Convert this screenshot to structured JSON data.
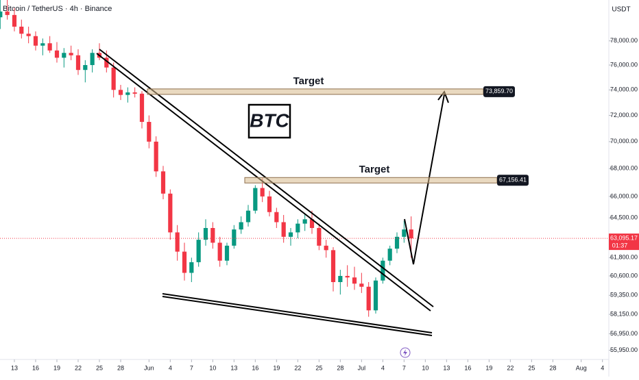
{
  "chart_data": {
    "type": "candlestick",
    "title": "Bitcoin / TetherUS · 4h · Binance",
    "currency": "USDT",
    "annotation": "BTC",
    "targets": [
      {
        "text": "Target",
        "level": {
          "value": 73859.7,
          "label": "73,859.70"
        }
      },
      {
        "text": "Target",
        "level": {
          "value": 67156.41,
          "label": "67,156.41"
        }
      }
    ],
    "last_price": {
      "value": 63095.17,
      "label": "63,095.17"
    },
    "countdown": "01:37",
    "log_scale": true,
    "up_color": "#089981",
    "down_color": "#f23645",
    "xlim": [
      -2.03,
      83.9
    ],
    "ylim": [
      55400,
      81500
    ],
    "yticks": [
      {
        "value": 78000,
        "label": "78,000.00"
      },
      {
        "value": 76000,
        "label": "76,000.00"
      },
      {
        "value": 74000,
        "label": "74,000.00"
      },
      {
        "value": 72000,
        "label": "72,000.00"
      },
      {
        "value": 70000,
        "label": "70,000.00"
      },
      {
        "value": 68000,
        "label": "68,000.00"
      },
      {
        "value": 66000,
        "label": "66,000.00"
      },
      {
        "value": 64500,
        "label": "64,500.00"
      },
      {
        "value": 61800,
        "label": "61,800.00"
      },
      {
        "value": 60600,
        "label": "60,600.00"
      },
      {
        "value": 59350,
        "label": "59,350.00"
      },
      {
        "value": 58150,
        "label": "58,150.00"
      },
      {
        "value": 56950,
        "label": "56,950.00"
      },
      {
        "value": 55950,
        "label": "55,950.00"
      }
    ],
    "xticks": [
      {
        "value": 0,
        "label": "13"
      },
      {
        "value": 3,
        "label": "16"
      },
      {
        "value": 6,
        "label": "19"
      },
      {
        "value": 9,
        "label": "22"
      },
      {
        "value": 12,
        "label": "25"
      },
      {
        "value": 15,
        "label": "28"
      },
      {
        "value": 19,
        "label": "Jun"
      },
      {
        "value": 22,
        "label": "4"
      },
      {
        "value": 25,
        "label": "7"
      },
      {
        "value": 28,
        "label": "10"
      },
      {
        "value": 31,
        "label": "13"
      },
      {
        "value": 34,
        "label": "16"
      },
      {
        "value": 37,
        "label": "19"
      },
      {
        "value": 40,
        "label": "22"
      },
      {
        "value": 43,
        "label": "25"
      },
      {
        "value": 46,
        "label": "28"
      },
      {
        "value": 49,
        "label": "Jul"
      },
      {
        "value": 52,
        "label": "4"
      },
      {
        "value": 55,
        "label": "7"
      },
      {
        "value": 58,
        "label": "10"
      },
      {
        "value": 61,
        "label": "13"
      },
      {
        "value": 64,
        "label": "16"
      },
      {
        "value": 67,
        "label": "19"
      },
      {
        "value": 70,
        "label": "22"
      },
      {
        "value": 73,
        "label": "25"
      },
      {
        "value": 76,
        "label": "28"
      },
      {
        "value": 80,
        "label": "Aug"
      },
      {
        "value": 83,
        "label": "4"
      }
    ],
    "x": [
      -2,
      -1,
      0,
      1,
      2,
      3,
      4,
      5,
      6,
      7,
      8,
      9,
      10,
      11,
      12,
      13,
      14,
      15,
      16,
      17,
      18,
      19,
      20,
      21,
      22,
      23,
      24,
      25,
      26,
      27,
      28,
      29,
      30,
      31,
      32,
      33,
      34,
      35,
      36,
      37,
      38,
      39,
      40,
      41,
      42,
      43,
      44,
      45,
      46,
      47,
      48,
      49,
      50,
      51,
      52,
      53,
      54,
      55,
      56
    ],
    "open": [
      80000,
      80500,
      80200,
      79200,
      78600,
      78400,
      77600,
      77800,
      77200,
      76600,
      77000,
      76800,
      75600,
      76000,
      77000,
      76600,
      75800,
      74000,
      73600,
      73800,
      73700,
      71500,
      70000,
      67800,
      66200,
      63500,
      62200,
      60800,
      61500,
      63000,
      63800,
      62800,
      61600,
      62600,
      63700,
      64200,
      65000,
      66600,
      66000,
      64900,
      64200,
      63200,
      63500,
      64100,
      64400,
      63800,
      62600,
      62300,
      60200,
      60600,
      60500,
      60100,
      59900,
      58400,
      60300,
      61600,
      62400,
      63200,
      63700
    ],
    "high": [
      81800,
      81500,
      80800,
      79800,
      79200,
      78800,
      78200,
      78400,
      77900,
      77400,
      77600,
      77300,
      76400,
      77300,
      77800,
      77200,
      76200,
      74400,
      74200,
      74200,
      73900,
      72000,
      70400,
      68200,
      66500,
      64000,
      62800,
      61800,
      63500,
      64400,
      64200,
      63200,
      62800,
      64000,
      64600,
      65400,
      66800,
      67300,
      66400,
      65200,
      64700,
      63800,
      64400,
      64800,
      65000,
      64100,
      63000,
      62500,
      61000,
      61300,
      61200,
      60800,
      60200,
      60500,
      61800,
      62600,
      63500,
      64300,
      64600
    ],
    "low": [
      79000,
      79800,
      78800,
      78200,
      77800,
      77200,
      76800,
      77000,
      76200,
      75800,
      76400,
      75200,
      74600,
      75400,
      76400,
      75400,
      73400,
      73200,
      73000,
      73400,
      71000,
      69500,
      67400,
      65800,
      63000,
      61600,
      60300,
      60200,
      61200,
      62600,
      62400,
      61200,
      61300,
      62400,
      63400,
      63900,
      64800,
      65600,
      64600,
      63800,
      62800,
      62600,
      63100,
      63600,
      63400,
      62300,
      61800,
      59600,
      59400,
      59900,
      59700,
      59500,
      58000,
      58200,
      60100,
      61300,
      62100,
      62800,
      61800
    ],
    "close": [
      80500,
      80200,
      79200,
      78600,
      78400,
      77600,
      77800,
      77200,
      76600,
      77000,
      76800,
      75600,
      76000,
      77000,
      76600,
      75800,
      74000,
      73600,
      73800,
      73700,
      71500,
      70000,
      67800,
      66200,
      63500,
      62200,
      60800,
      61500,
      63000,
      63800,
      62800,
      61600,
      62600,
      63700,
      64200,
      65000,
      66600,
      66000,
      64900,
      64200,
      63200,
      63500,
      64100,
      64400,
      63800,
      62600,
      62300,
      60200,
      60600,
      60500,
      60100,
      59900,
      58400,
      60300,
      61600,
      62400,
      63200,
      63700,
      63095
    ]
  }
}
